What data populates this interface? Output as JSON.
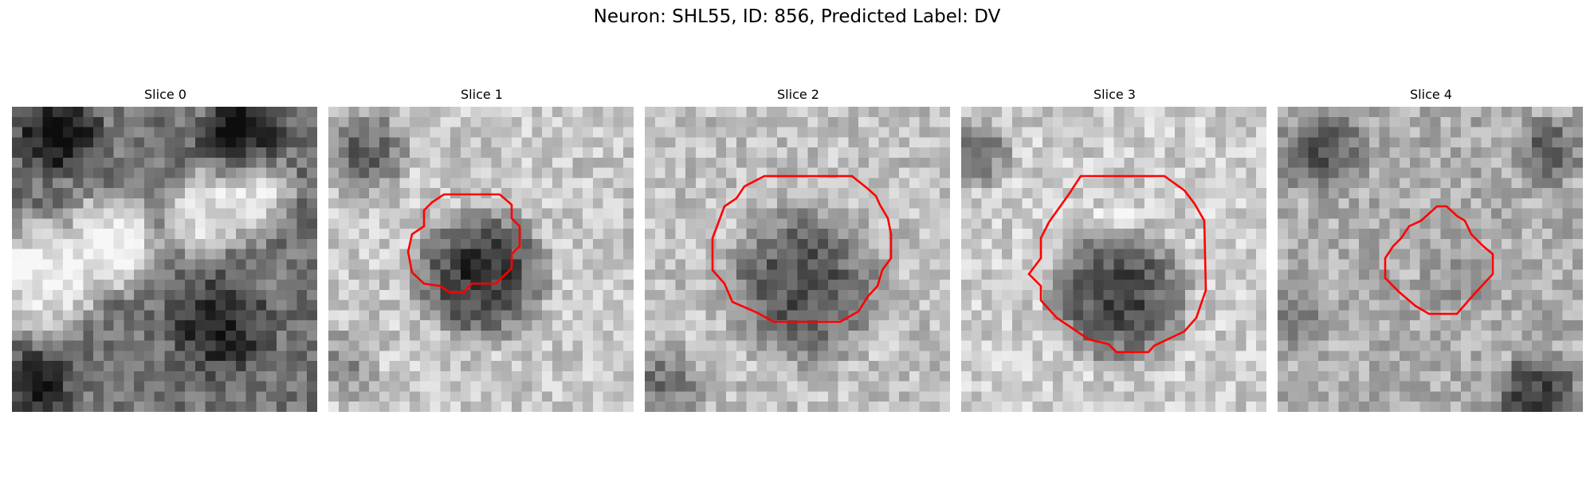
{
  "figure_title": "Neuron: SHL55, ID: 856, Predicted Label: DV",
  "contour_color": "#ff0000",
  "colormap": "gray",
  "panels": [
    {
      "title": "Slice 0",
      "has_contour": false
    },
    {
      "title": "Slice 1",
      "has_contour": true
    },
    {
      "title": "Slice 2",
      "has_contour": true
    },
    {
      "title": "Slice 3",
      "has_contour": true
    },
    {
      "title": "Slice 4",
      "has_contour": true
    }
  ]
}
